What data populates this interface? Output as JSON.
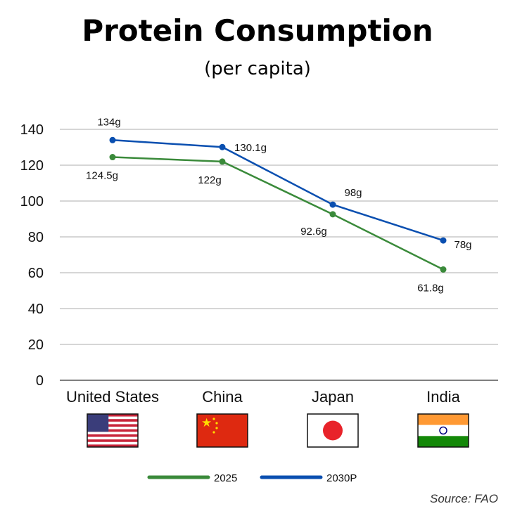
{
  "chart_data": {
    "type": "line",
    "title": "Protein Consumption",
    "subtitle": "(per capita)",
    "categories": [
      "United States",
      "China",
      "Japan",
      "India"
    ],
    "series": [
      {
        "name": "2025",
        "color": "#3a8a3a",
        "values": [
          124.5,
          122,
          92.6,
          61.8
        ],
        "labels": [
          "124.5g",
          "122g",
          "92.6g",
          "61.8g"
        ]
      },
      {
        "name": "2030P",
        "color": "#0a4fb0",
        "values": [
          134,
          130.1,
          98,
          78
        ],
        "labels": [
          "134g",
          "130.1g",
          "98g",
          "78g"
        ]
      }
    ],
    "yticks": [
      "0",
      "20",
      "40",
      "60",
      "80",
      "100",
      "120",
      "140"
    ],
    "ylim": [
      0,
      140
    ],
    "grid": true,
    "legend": "bottom",
    "flags": [
      "us-flag",
      "china-flag",
      "japan-flag",
      "india-flag"
    ],
    "source": "Source: FAO"
  }
}
